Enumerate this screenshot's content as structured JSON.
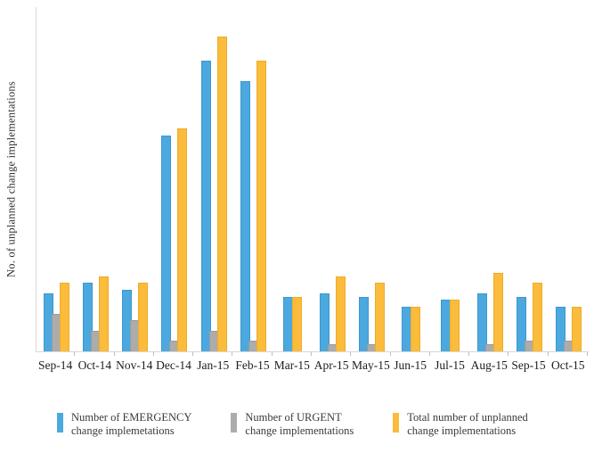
{
  "chart_data": {
    "type": "bar",
    "title": "",
    "xlabel": "",
    "ylabel": "No. of unplanned change implementations",
    "categories": [
      "Sep-14",
      "Oct-14",
      "Nov-14",
      "Dec-14",
      "Jan-15",
      "Feb-15",
      "Mar-15",
      "Apr-15",
      "May-15",
      "Jun-15",
      "Jul-15",
      "Aug-15",
      "Sep-15",
      "Oct-15"
    ],
    "series": [
      {
        "key": "emergency",
        "name": "Number of EMERGENCY change implemetations",
        "color": "#4BA9DF",
        "border_color": "#3D97CE",
        "values": [
          17,
          20,
          18,
          63,
          85,
          79,
          16,
          17,
          16,
          13,
          15,
          17,
          16,
          13
        ]
      },
      {
        "key": "urgent",
        "name": "Number of URGENT change implementations",
        "color": "#ACACAC",
        "border_color": "#9A9A9A",
        "values": [
          11,
          6,
          9,
          3,
          6,
          3,
          0,
          2,
          2,
          0,
          0,
          2,
          3,
          3
        ]
      },
      {
        "key": "total",
        "name": "Total number of unplanned change implementations",
        "color": "#FBBB3B",
        "border_color": "#EFAC29",
        "values": [
          20,
          22,
          20,
          65,
          92,
          85,
          16,
          22,
          20,
          13,
          15,
          23,
          20,
          13
        ]
      }
    ],
    "ylim": [
      0,
      100
    ],
    "grid": false,
    "y_tick_labels_visible": false,
    "legend_position": "bottom"
  },
  "legend": {
    "items": [
      {
        "series": "emergency",
        "color": "#4BA9DF",
        "line1": "Number of EMERGENCY",
        "line2": "change implemetations"
      },
      {
        "series": "urgent",
        "color": "#ACACAC",
        "line1": "Number of URGENT",
        "line2": "change implementations"
      },
      {
        "series": "total",
        "color": "#FBBB3B",
        "line1": "Total number of unplanned",
        "line2": "change implementations"
      }
    ]
  },
  "axes": {
    "y_label": "No. of unplanned change implementations"
  }
}
